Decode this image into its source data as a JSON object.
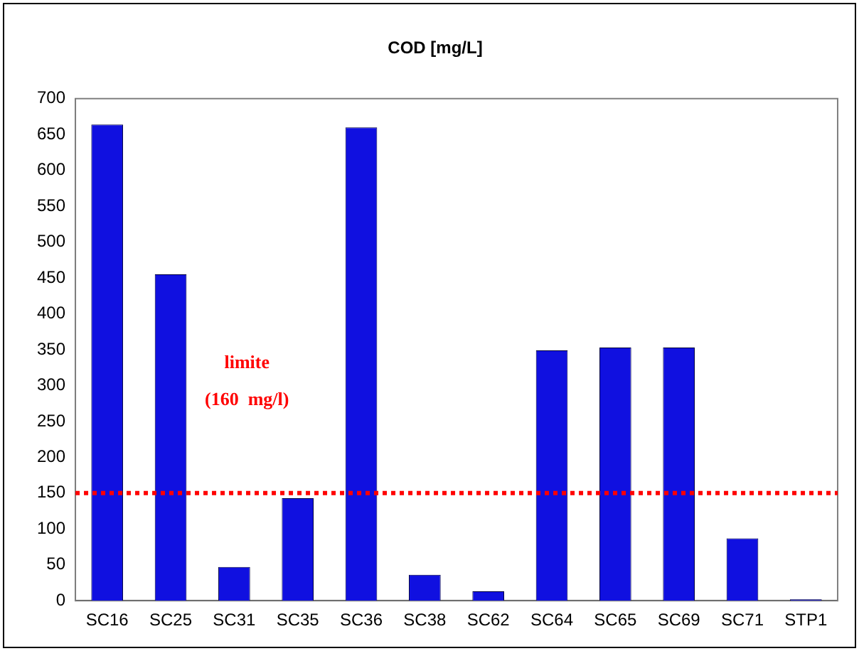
{
  "chart_data": {
    "type": "bar",
    "title": "COD [mg/L]",
    "categories": [
      "SC16",
      "SC25",
      "SC31",
      "SC35",
      "SC36",
      "SC38",
      "SC62",
      "SC64",
      "SC65",
      "SC69",
      "SC71",
      "STP1"
    ],
    "values": [
      664,
      455,
      47,
      143,
      660,
      36,
      13,
      349,
      353,
      353,
      87,
      2
    ],
    "color": "#1010e0",
    "ylim": [
      0,
      700
    ],
    "yticks": [
      0,
      50,
      100,
      150,
      200,
      250,
      300,
      350,
      400,
      450,
      500,
      550,
      600,
      650,
      700
    ],
    "grid": false,
    "legend": false,
    "ref_lines": [
      {
        "axis": "y",
        "value": 150,
        "label": "limite\n(160  mg/l)",
        "color": "#ff0000",
        "line_style": "dotted"
      }
    ]
  }
}
